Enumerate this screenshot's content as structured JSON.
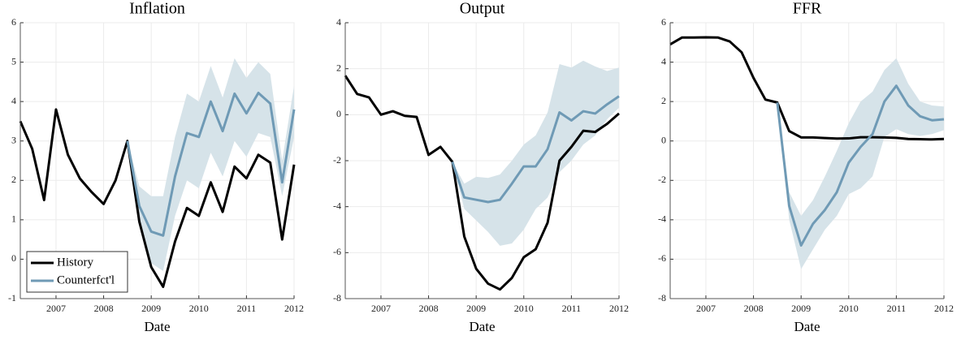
{
  "chart_data": [
    {
      "type": "line",
      "title": "Inflation",
      "x_label": "Date",
      "x": [
        2006.25,
        2006.5,
        2006.75,
        2007,
        2007.25,
        2007.5,
        2007.75,
        2008,
        2008.25,
        2008.5,
        2008.75,
        2009,
        2009.25,
        2009.5,
        2009.75,
        2010,
        2010.25,
        2010.5,
        2010.75,
        2011,
        2011.25,
        2011.5,
        2011.75,
        2012
      ],
      "xlim": [
        2006.25,
        2012
      ],
      "xticks": [
        2007,
        2008,
        2009,
        2010,
        2011,
        2012
      ],
      "ylim": [
        -1,
        6
      ],
      "yticks": [
        -1,
        0,
        1,
        2,
        3,
        4,
        5,
        6
      ],
      "grid": true,
      "legend": "lower left",
      "band": {
        "color": "#d6e3e9",
        "upper": [
          null,
          null,
          null,
          null,
          null,
          null,
          null,
          null,
          null,
          3.0,
          1.85,
          1.6,
          1.6,
          3.1,
          4.2,
          4.0,
          4.9,
          4.1,
          5.1,
          4.6,
          5.0,
          4.7,
          2.5,
          4.4
        ],
        "lower": [
          null,
          null,
          null,
          null,
          null,
          null,
          null,
          null,
          null,
          3.0,
          0.9,
          -0.1,
          -0.3,
          1.1,
          2.0,
          1.8,
          2.7,
          2.1,
          3.0,
          2.6,
          3.2,
          3.1,
          1.6,
          3.1
        ]
      },
      "series": [
        {
          "name": "History",
          "color": "#000000",
          "values": [
            3.5,
            2.8,
            1.5,
            3.8,
            2.65,
            2.05,
            1.7,
            1.4,
            2.0,
            3.0,
            0.95,
            -0.2,
            -0.7,
            0.45,
            1.3,
            1.1,
            1.95,
            1.2,
            2.35,
            2.05,
            2.65,
            2.45,
            0.5,
            2.4
          ]
        },
        {
          "name": "Counterfct'l",
          "color": "#6f9ab5",
          "values": [
            null,
            null,
            null,
            null,
            null,
            null,
            null,
            null,
            null,
            3.0,
            1.35,
            0.7,
            0.6,
            2.1,
            3.2,
            3.1,
            4.0,
            3.25,
            4.2,
            3.7,
            4.22,
            3.95,
            1.95,
            3.8
          ]
        }
      ]
    },
    {
      "type": "line",
      "title": "Output",
      "x_label": "Date",
      "x": [
        2006.25,
        2006.5,
        2006.75,
        2007,
        2007.25,
        2007.5,
        2007.75,
        2008,
        2008.25,
        2008.5,
        2008.75,
        2009,
        2009.25,
        2009.5,
        2009.75,
        2010,
        2010.25,
        2010.5,
        2010.75,
        2011,
        2011.25,
        2011.5,
        2011.75,
        2012
      ],
      "xlim": [
        2006.25,
        2012
      ],
      "xticks": [
        2007,
        2008,
        2009,
        2010,
        2011,
        2012
      ],
      "ylim": [
        -8,
        4
      ],
      "yticks": [
        -8,
        -6,
        -4,
        -2,
        0,
        2,
        4
      ],
      "grid": true,
      "band": {
        "color": "#d6e3e9",
        "upper": [
          null,
          null,
          null,
          null,
          null,
          null,
          null,
          null,
          null,
          -2.05,
          -3.0,
          -2.7,
          -2.75,
          -2.6,
          -2.0,
          -1.3,
          -0.9,
          0.1,
          2.2,
          2.05,
          2.35,
          2.1,
          1.9,
          2.05
        ],
        "lower": [
          null,
          null,
          null,
          null,
          null,
          null,
          null,
          null,
          null,
          -2.05,
          -4.1,
          -4.6,
          -5.1,
          -5.7,
          -5.6,
          -5.0,
          -4.1,
          -3.6,
          -2.5,
          -2.0,
          -1.3,
          -0.9,
          -0.2,
          0.3
        ]
      },
      "series": [
        {
          "color": "#000000",
          "values": [
            1.7,
            0.9,
            0.75,
            0.0,
            0.15,
            -0.05,
            -0.1,
            -1.75,
            -1.4,
            -2.05,
            -5.3,
            -6.7,
            -7.35,
            -7.6,
            -7.1,
            -6.2,
            -5.85,
            -4.7,
            -2.0,
            -1.4,
            -0.7,
            -0.75,
            -0.4,
            0.05
          ]
        },
        {
          "color": "#6f9ab5",
          "values": [
            null,
            null,
            null,
            null,
            null,
            null,
            null,
            null,
            null,
            -2.05,
            -3.6,
            -3.7,
            -3.8,
            -3.7,
            -3.0,
            -2.25,
            -2.25,
            -1.5,
            0.1,
            -0.25,
            0.15,
            0.05,
            0.45,
            0.8
          ]
        }
      ]
    },
    {
      "type": "line",
      "title": "FFR",
      "x_label": "Date",
      "x": [
        2006.25,
        2006.5,
        2006.75,
        2007,
        2007.25,
        2007.5,
        2007.75,
        2008,
        2008.25,
        2008.5,
        2008.75,
        2009,
        2009.25,
        2009.5,
        2009.75,
        2010,
        2010.25,
        2010.5,
        2010.75,
        2011,
        2011.25,
        2011.5,
        2011.75,
        2012
      ],
      "xlim": [
        2006.25,
        2012
      ],
      "xticks": [
        2007,
        2008,
        2009,
        2010,
        2011,
        2012
      ],
      "ylim": [
        -8,
        6
      ],
      "yticks": [
        -8,
        -6,
        -4,
        -2,
        0,
        2,
        4,
        6
      ],
      "grid": true,
      "band": {
        "color": "#d6e3e9",
        "upper": [
          null,
          null,
          null,
          null,
          null,
          null,
          null,
          null,
          null,
          1.95,
          -2.6,
          -3.8,
          -3.0,
          -1.8,
          -0.5,
          0.9,
          2.0,
          2.5,
          3.6,
          4.2,
          2.9,
          2.0,
          1.8,
          1.75
        ],
        "lower": [
          null,
          null,
          null,
          null,
          null,
          null,
          null,
          null,
          null,
          1.95,
          -4.0,
          -6.5,
          -5.5,
          -4.5,
          -3.8,
          -2.7,
          -2.4,
          -1.8,
          0.2,
          0.6,
          0.35,
          0.25,
          0.35,
          0.55
        ]
      },
      "series": [
        {
          "color": "#000000",
          "values": [
            4.9,
            5.25,
            5.25,
            5.26,
            5.25,
            5.05,
            4.5,
            3.2,
            2.1,
            1.95,
            0.5,
            0.18,
            0.18,
            0.15,
            0.12,
            0.13,
            0.19,
            0.19,
            0.18,
            0.16,
            0.1,
            0.09,
            0.08,
            0.1
          ]
        },
        {
          "color": "#6f9ab5",
          "values": [
            null,
            null,
            null,
            null,
            null,
            null,
            null,
            null,
            null,
            1.95,
            -3.3,
            -5.3,
            -4.2,
            -3.5,
            -2.6,
            -1.1,
            -0.3,
            0.35,
            2.0,
            2.8,
            1.8,
            1.25,
            1.05,
            1.1
          ]
        }
      ]
    }
  ]
}
